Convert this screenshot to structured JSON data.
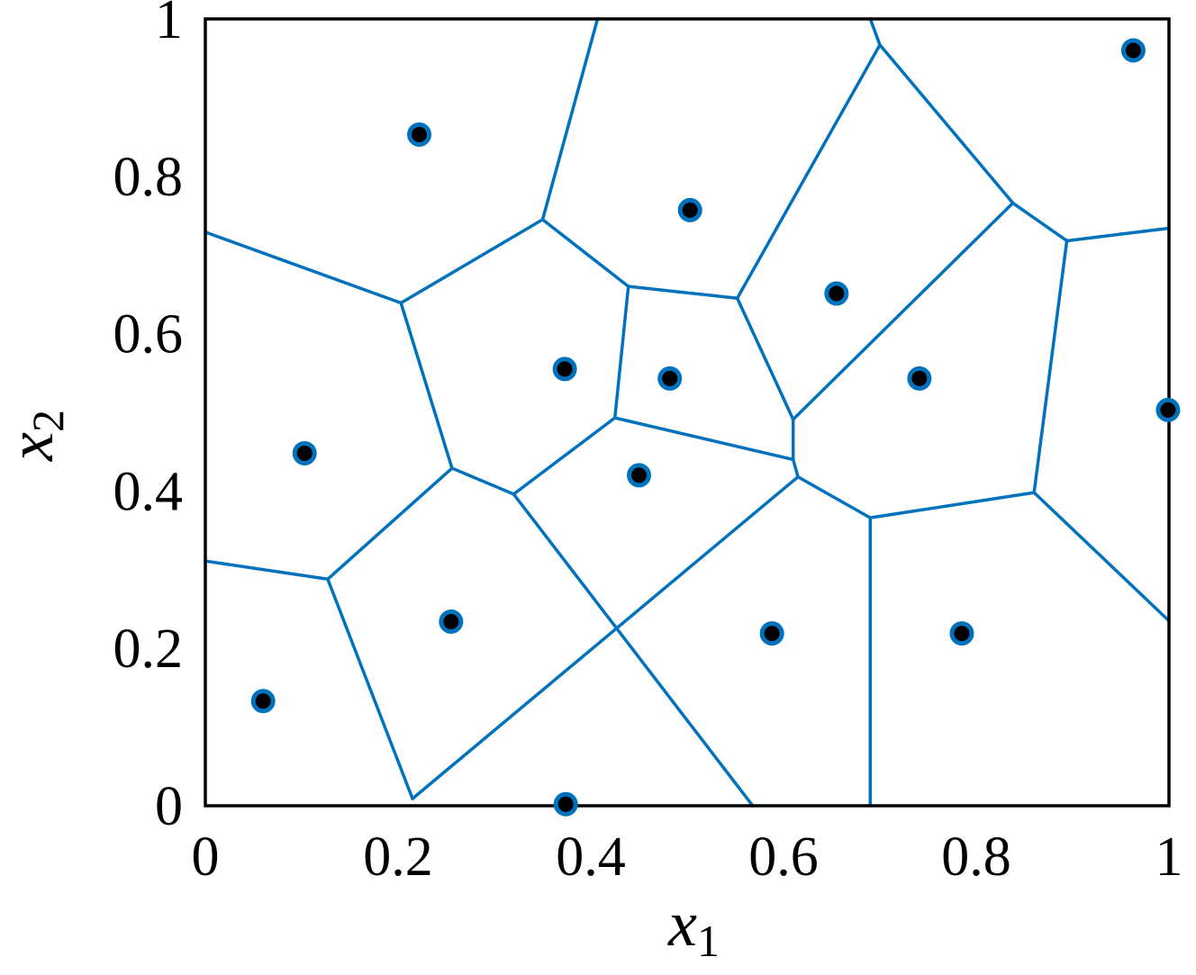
{
  "chart_data": {
    "type": "scatter",
    "title": "",
    "xlabel": {
      "main": "x",
      "sub": "1"
    },
    "ylabel": {
      "main": "x",
      "sub": "2"
    },
    "xlim": [
      0,
      1
    ],
    "ylim": [
      0,
      1
    ],
    "x_ticks": [
      {
        "value": 0,
        "label": "0"
      },
      {
        "value": 0.2,
        "label": "0.2"
      },
      {
        "value": 0.4,
        "label": "0.4"
      },
      {
        "value": 0.6,
        "label": "0.6"
      },
      {
        "value": 0.8,
        "label": "0.8"
      },
      {
        "value": 1,
        "label": "1"
      }
    ],
    "y_ticks": [
      {
        "value": 0,
        "label": "0"
      },
      {
        "value": 0.2,
        "label": "0.2"
      },
      {
        "value": 0.4,
        "label": "0.4"
      },
      {
        "value": 0.6,
        "label": "0.6"
      },
      {
        "value": 0.8,
        "label": "0.8"
      },
      {
        "value": 1,
        "label": "1"
      }
    ],
    "grid": false,
    "colors": {
      "edge": "#0072BD",
      "point_fill": "#000000",
      "point_ring": "#0072BD"
    },
    "points": [
      {
        "x": 0.06,
        "y": 0.133
      },
      {
        "x": 0.103,
        "y": 0.448
      },
      {
        "x": 0.222,
        "y": 0.853
      },
      {
        "x": 0.255,
        "y": 0.234
      },
      {
        "x": 0.374,
        "y": 0.002
      },
      {
        "x": 0.373,
        "y": 0.555
      },
      {
        "x": 0.45,
        "y": 0.42
      },
      {
        "x": 0.482,
        "y": 0.543
      },
      {
        "x": 0.503,
        "y": 0.757
      },
      {
        "x": 0.588,
        "y": 0.219
      },
      {
        "x": 0.655,
        "y": 0.651
      },
      {
        "x": 0.741,
        "y": 0.543
      },
      {
        "x": 0.785,
        "y": 0.219
      },
      {
        "x": 0.963,
        "y": 0.96
      },
      {
        "x": 0.999,
        "y": 0.503
      }
    ],
    "voronoi_edges": [
      [
        [
          0.407,
          1.0
        ],
        [
          0.35,
          0.745
        ]
      ],
      [
        [
          0.69,
          1.0
        ],
        [
          0.7,
          0.967
        ]
      ],
      [
        [
          0.7,
          0.967
        ],
        [
          0.838,
          0.766
        ]
      ],
      [
        [
          0.838,
          0.766
        ],
        [
          0.894,
          0.718
        ]
      ],
      [
        [
          0.894,
          0.718
        ],
        [
          1.0,
          0.734
        ]
      ],
      [
        [
          0.0,
          0.729
        ],
        [
          0.203,
          0.639
        ]
      ],
      [
        [
          0.203,
          0.639
        ],
        [
          0.35,
          0.745
        ]
      ],
      [
        [
          0.35,
          0.745
        ],
        [
          0.439,
          0.66
        ]
      ],
      [
        [
          0.439,
          0.66
        ],
        [
          0.552,
          0.645
        ]
      ],
      [
        [
          0.552,
          0.645
        ],
        [
          0.7,
          0.967
        ]
      ],
      [
        [
          0.552,
          0.645
        ],
        [
          0.61,
          0.491
        ]
      ],
      [
        [
          0.61,
          0.491
        ],
        [
          0.838,
          0.766
        ]
      ],
      [
        [
          0.61,
          0.491
        ],
        [
          0.61,
          0.44
        ]
      ],
      [
        [
          0.61,
          0.44
        ],
        [
          0.425,
          0.493
        ]
      ],
      [
        [
          0.425,
          0.493
        ],
        [
          0.439,
          0.66
        ]
      ],
      [
        [
          0.425,
          0.493
        ],
        [
          0.32,
          0.396
        ]
      ],
      [
        [
          0.32,
          0.396
        ],
        [
          0.256,
          0.429
        ]
      ],
      [
        [
          0.256,
          0.429
        ],
        [
          0.203,
          0.639
        ]
      ],
      [
        [
          0.256,
          0.429
        ],
        [
          0.127,
          0.288
        ]
      ],
      [
        [
          0.127,
          0.288
        ],
        [
          0.0,
          0.311
        ]
      ],
      [
        [
          0.127,
          0.288
        ],
        [
          0.215,
          0.009
        ]
      ],
      [
        [
          0.215,
          0.009
        ],
        [
          0.615,
          0.418
        ]
      ],
      [
        [
          0.61,
          0.44
        ],
        [
          0.615,
          0.418
        ]
      ],
      [
        [
          0.615,
          0.418
        ],
        [
          0.69,
          0.366
        ]
      ],
      [
        [
          0.69,
          0.366
        ],
        [
          0.69,
          0.0
        ]
      ],
      [
        [
          0.69,
          0.366
        ],
        [
          0.86,
          0.398
        ]
      ],
      [
        [
          0.86,
          0.398
        ],
        [
          0.894,
          0.718
        ]
      ],
      [
        [
          0.86,
          0.398
        ],
        [
          1.0,
          0.235
        ]
      ],
      [
        [
          0.32,
          0.396
        ],
        [
          0.568,
          0.0
        ]
      ]
    ]
  }
}
